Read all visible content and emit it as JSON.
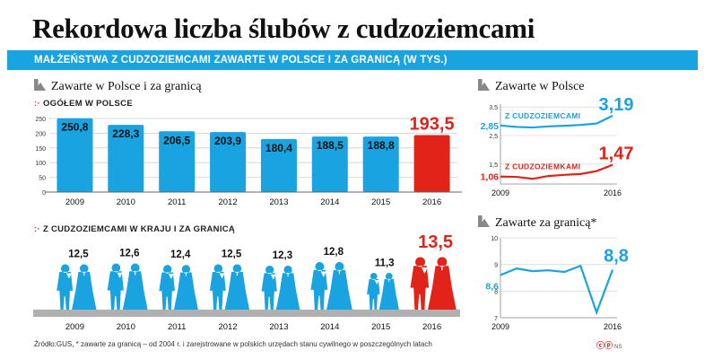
{
  "title": "Rekordowa liczba ślubów z cudzoziemcami",
  "subtitle": "Małżeństwa z cudzoziemcami zawarte w Polsce i za granicą (w tys.)",
  "left_section_title": "Zawarte w Polsce i za granicą",
  "bar_chart_label": "ogółem w Polsce",
  "people_chart_label": "z cudzoziemcami w kraju i za granicą",
  "right_section1_title": "Zawarte w Polsce",
  "right_section2_title": "Zawarte za granicą*",
  "source": "Źródło:GUS, * zawarte za granicą – od 2004 r. i zarejstrowane w polskich urzędach stanu cywilnego w poszczególnych latach",
  "logo_text": "NS",
  "colors": {
    "blue": "#1aa3e1",
    "light_blue": "#8fd2f0",
    "red": "#e2231a",
    "grey": "#9a9a9a",
    "dark": "#111111"
  },
  "chart_data": [
    {
      "type": "bar",
      "title": "ogółem w Polsce",
      "categories": [
        "2009",
        "2010",
        "2011",
        "2012",
        "2013",
        "2014",
        "2015",
        "2016"
      ],
      "values": [
        250.8,
        228.3,
        206.5,
        203.9,
        180.4,
        188.5,
        188.8,
        193.5
      ],
      "labels": [
        "250,8",
        "228,3",
        "206,5",
        "203,9",
        "180,4",
        "188,5",
        "188,8",
        "193,5"
      ],
      "ylim": [
        0,
        250
      ],
      "yticks": [
        0,
        50,
        100,
        150,
        200,
        250
      ],
      "ytick_labels": [
        "0",
        "50",
        "100",
        "150",
        "200",
        "250"
      ],
      "highlight": "2016"
    },
    {
      "type": "pictogram",
      "title": "z cudzoziemcami w kraju i za granicą",
      "categories": [
        "2009",
        "2010",
        "2011",
        "2012",
        "2013",
        "2014",
        "2015",
        "2016"
      ],
      "values": [
        12.5,
        12.6,
        12.4,
        12.5,
        12.3,
        12.8,
        11.3,
        13.5
      ],
      "labels": [
        "12,5",
        "12,6",
        "12,4",
        "12,5",
        "12,3",
        "12,8",
        "11,3",
        "13,5"
      ],
      "highlight": "2016"
    },
    {
      "type": "line",
      "title": "Zawarte w Polsce",
      "x_labels": [
        "2009",
        "2016"
      ],
      "ylim": [
        0.8,
        3.6
      ],
      "yticks": [
        1.5,
        2.5,
        3.5
      ],
      "ytick_labels": [
        "1,5",
        "2,5",
        "3,5"
      ],
      "series": [
        {
          "name": "z cudzoziemcami",
          "values": [
            2.85,
            2.8,
            2.78,
            2.82,
            2.84,
            2.87,
            2.92,
            3.19
          ],
          "start_label": "2,85",
          "end_label": "3,19"
        },
        {
          "name": "z cudzoziemkami",
          "values": [
            1.06,
            1.05,
            0.98,
            1.08,
            1.12,
            1.15,
            1.25,
            1.47
          ],
          "start_label": "1,06",
          "end_label": "1,47"
        }
      ]
    },
    {
      "type": "line",
      "title": "Zawarte za granicą*",
      "x_labels": [
        "2009",
        "2016"
      ],
      "ylim": [
        7,
        10
      ],
      "yticks": [
        7,
        8,
        9,
        10
      ],
      "ytick_labels": [
        "7",
        "8",
        "9",
        "10"
      ],
      "series": [
        {
          "name": "za granicą",
          "values": [
            8.6,
            8.85,
            8.75,
            8.78,
            8.72,
            8.95,
            7.2,
            8.8
          ],
          "start_label": "8,6",
          "end_label": "8,8"
        }
      ]
    }
  ]
}
